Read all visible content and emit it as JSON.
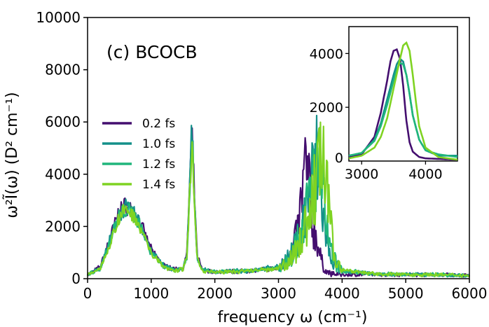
{
  "chart_data": [
    {
      "type": "line",
      "panel_label": "(c) BCOCB",
      "xlabel": "frequency ω (cm⁻¹)",
      "ylabel": "ω²Ĩ(ω) (D² cm⁻¹)",
      "xlim": [
        0,
        6000
      ],
      "ylim": [
        0,
        10000
      ],
      "xticks": [
        "0",
        "1000",
        "2000",
        "3000",
        "4000",
        "5000",
        "6000"
      ],
      "yticks": [
        "0",
        "2000",
        "4000",
        "6000",
        "8000",
        "10000"
      ],
      "legend_position": "center-left",
      "grid": false,
      "series": [
        {
          "name": "0.2 fs",
          "color": "#440e6f",
          "x": [
            0,
            200,
            400,
            500,
            600,
            700,
            800,
            1000,
            1200,
            1400,
            1500,
            1560,
            1600,
            1640,
            1680,
            1720,
            1800,
            2000,
            2500,
            3000,
            3200,
            3300,
            3380,
            3420,
            3440,
            3460,
            3500,
            3540,
            3600,
            3650,
            3700,
            3750,
            3800,
            4000,
            4500,
            5000,
            5500,
            6000
          ],
          "y": [
            150,
            450,
            1900,
            2600,
            2800,
            2650,
            2300,
            1100,
            500,
            350,
            420,
            900,
            3400,
            5500,
            3200,
            900,
            350,
            250,
            300,
            400,
            900,
            1800,
            3300,
            4500,
            3400,
            4400,
            2800,
            2000,
            1600,
            900,
            500,
            300,
            200,
            150,
            160,
            150,
            160,
            120
          ]
        },
        {
          "name": "1.0 fs",
          "color": "#14908a",
          "x": [
            0,
            200,
            400,
            500,
            600,
            700,
            800,
            1000,
            1200,
            1400,
            1500,
            1560,
            1600,
            1640,
            1680,
            1720,
            1800,
            2000,
            2500,
            3000,
            3200,
            3300,
            3400,
            3480,
            3550,
            3600,
            3650,
            3700,
            3750,
            3800,
            3900,
            4000,
            4500,
            5000,
            5500,
            6000
          ],
          "y": [
            150,
            420,
            1800,
            2500,
            2700,
            2550,
            2250,
            1050,
            480,
            340,
            400,
            850,
            3300,
            5800,
            3100,
            850,
            330,
            260,
            300,
            450,
            900,
            1500,
            2300,
            3300,
            4100,
            4500,
            3700,
            2500,
            1600,
            900,
            500,
            300,
            180,
            160,
            150,
            120
          ]
        },
        {
          "name": "1.2 fs",
          "color": "#20b67c",
          "x": [
            0,
            200,
            400,
            500,
            600,
            700,
            800,
            1000,
            1200,
            1400,
            1500,
            1560,
            1600,
            1640,
            1680,
            1720,
            1800,
            2000,
            2500,
            3000,
            3200,
            3300,
            3400,
            3500,
            3580,
            3650,
            3700,
            3760,
            3800,
            3900,
            4000,
            4500,
            5000,
            5500,
            6000
          ],
          "y": [
            150,
            400,
            1750,
            2450,
            2650,
            2500,
            2200,
            1000,
            460,
            330,
            390,
            800,
            3200,
            5300,
            3000,
            800,
            320,
            250,
            300,
            420,
            850,
            1400,
            2200,
            3200,
            4300,
            4100,
            3100,
            2000,
            1200,
            600,
            320,
            180,
            160,
            150,
            120
          ]
        },
        {
          "name": "1.4 fs",
          "color": "#7fd322",
          "x": [
            0,
            200,
            400,
            500,
            600,
            700,
            800,
            1000,
            1200,
            1400,
            1500,
            1560,
            1600,
            1640,
            1680,
            1720,
            1800,
            2000,
            2500,
            3000,
            3200,
            3300,
            3400,
            3500,
            3600,
            3680,
            3700,
            3760,
            3800,
            3850,
            3900,
            4000,
            4500,
            5000,
            5500,
            6000
          ],
          "y": [
            150,
            380,
            1700,
            2400,
            2600,
            2450,
            2150,
            980,
            450,
            320,
            380,
            780,
            3100,
            5000,
            2900,
            780,
            310,
            240,
            290,
            380,
            750,
            1200,
            1800,
            2600,
            3700,
            5100,
            4300,
            3300,
            2400,
            1400,
            700,
            350,
            180,
            160,
            150,
            120
          ]
        }
      ]
    },
    {
      "type": "line",
      "panel_label": "inset",
      "xlim": [
        2800,
        4500
      ],
      "ylim": [
        0,
        5000
      ],
      "xticks": [
        "3000",
        "4000"
      ],
      "yticks": [
        "2000",
        "4000"
      ],
      "series": [
        {
          "name": "0.2 fs",
          "color": "#440e6f",
          "x": [
            2800,
            3000,
            3200,
            3300,
            3400,
            3450,
            3500,
            3550,
            3600,
            3650,
            3700,
            3750,
            3800,
            3900,
            4000,
            4500
          ],
          "y": [
            150,
            250,
            900,
            1800,
            3000,
            3700,
            4100,
            4150,
            3800,
            2800,
            1500,
            700,
            350,
            150,
            100,
            50
          ]
        },
        {
          "name": "1.0 fs",
          "color": "#14908a",
          "x": [
            2800,
            3000,
            3200,
            3300,
            3400,
            3500,
            3550,
            3600,
            3650,
            3700,
            3750,
            3800,
            3900,
            4000,
            4200,
            4500
          ],
          "y": [
            200,
            300,
            800,
            1400,
            2300,
            3200,
            3600,
            3800,
            3700,
            3200,
            2500,
            1700,
            800,
            400,
            200,
            200
          ]
        },
        {
          "name": "1.2 fs",
          "color": "#20b67c",
          "x": [
            2800,
            3000,
            3200,
            3300,
            3400,
            3500,
            3550,
            3600,
            3650,
            3700,
            3750,
            3800,
            3900,
            4000,
            4200,
            4500
          ],
          "y": [
            200,
            300,
            750,
            1300,
            2100,
            3000,
            3400,
            3650,
            3600,
            3200,
            2500,
            1700,
            800,
            400,
            250,
            150
          ]
        },
        {
          "name": "1.4 fs",
          "color": "#7fd322",
          "x": [
            2800,
            3000,
            3200,
            3300,
            3400,
            3500,
            3600,
            3650,
            3700,
            3750,
            3800,
            3850,
            3900,
            4000,
            4200,
            4500
          ],
          "y": [
            100,
            200,
            500,
            900,
            1600,
            2700,
            3800,
            4300,
            4400,
            4100,
            3200,
            2200,
            1300,
            500,
            150,
            50
          ]
        }
      ]
    }
  ]
}
